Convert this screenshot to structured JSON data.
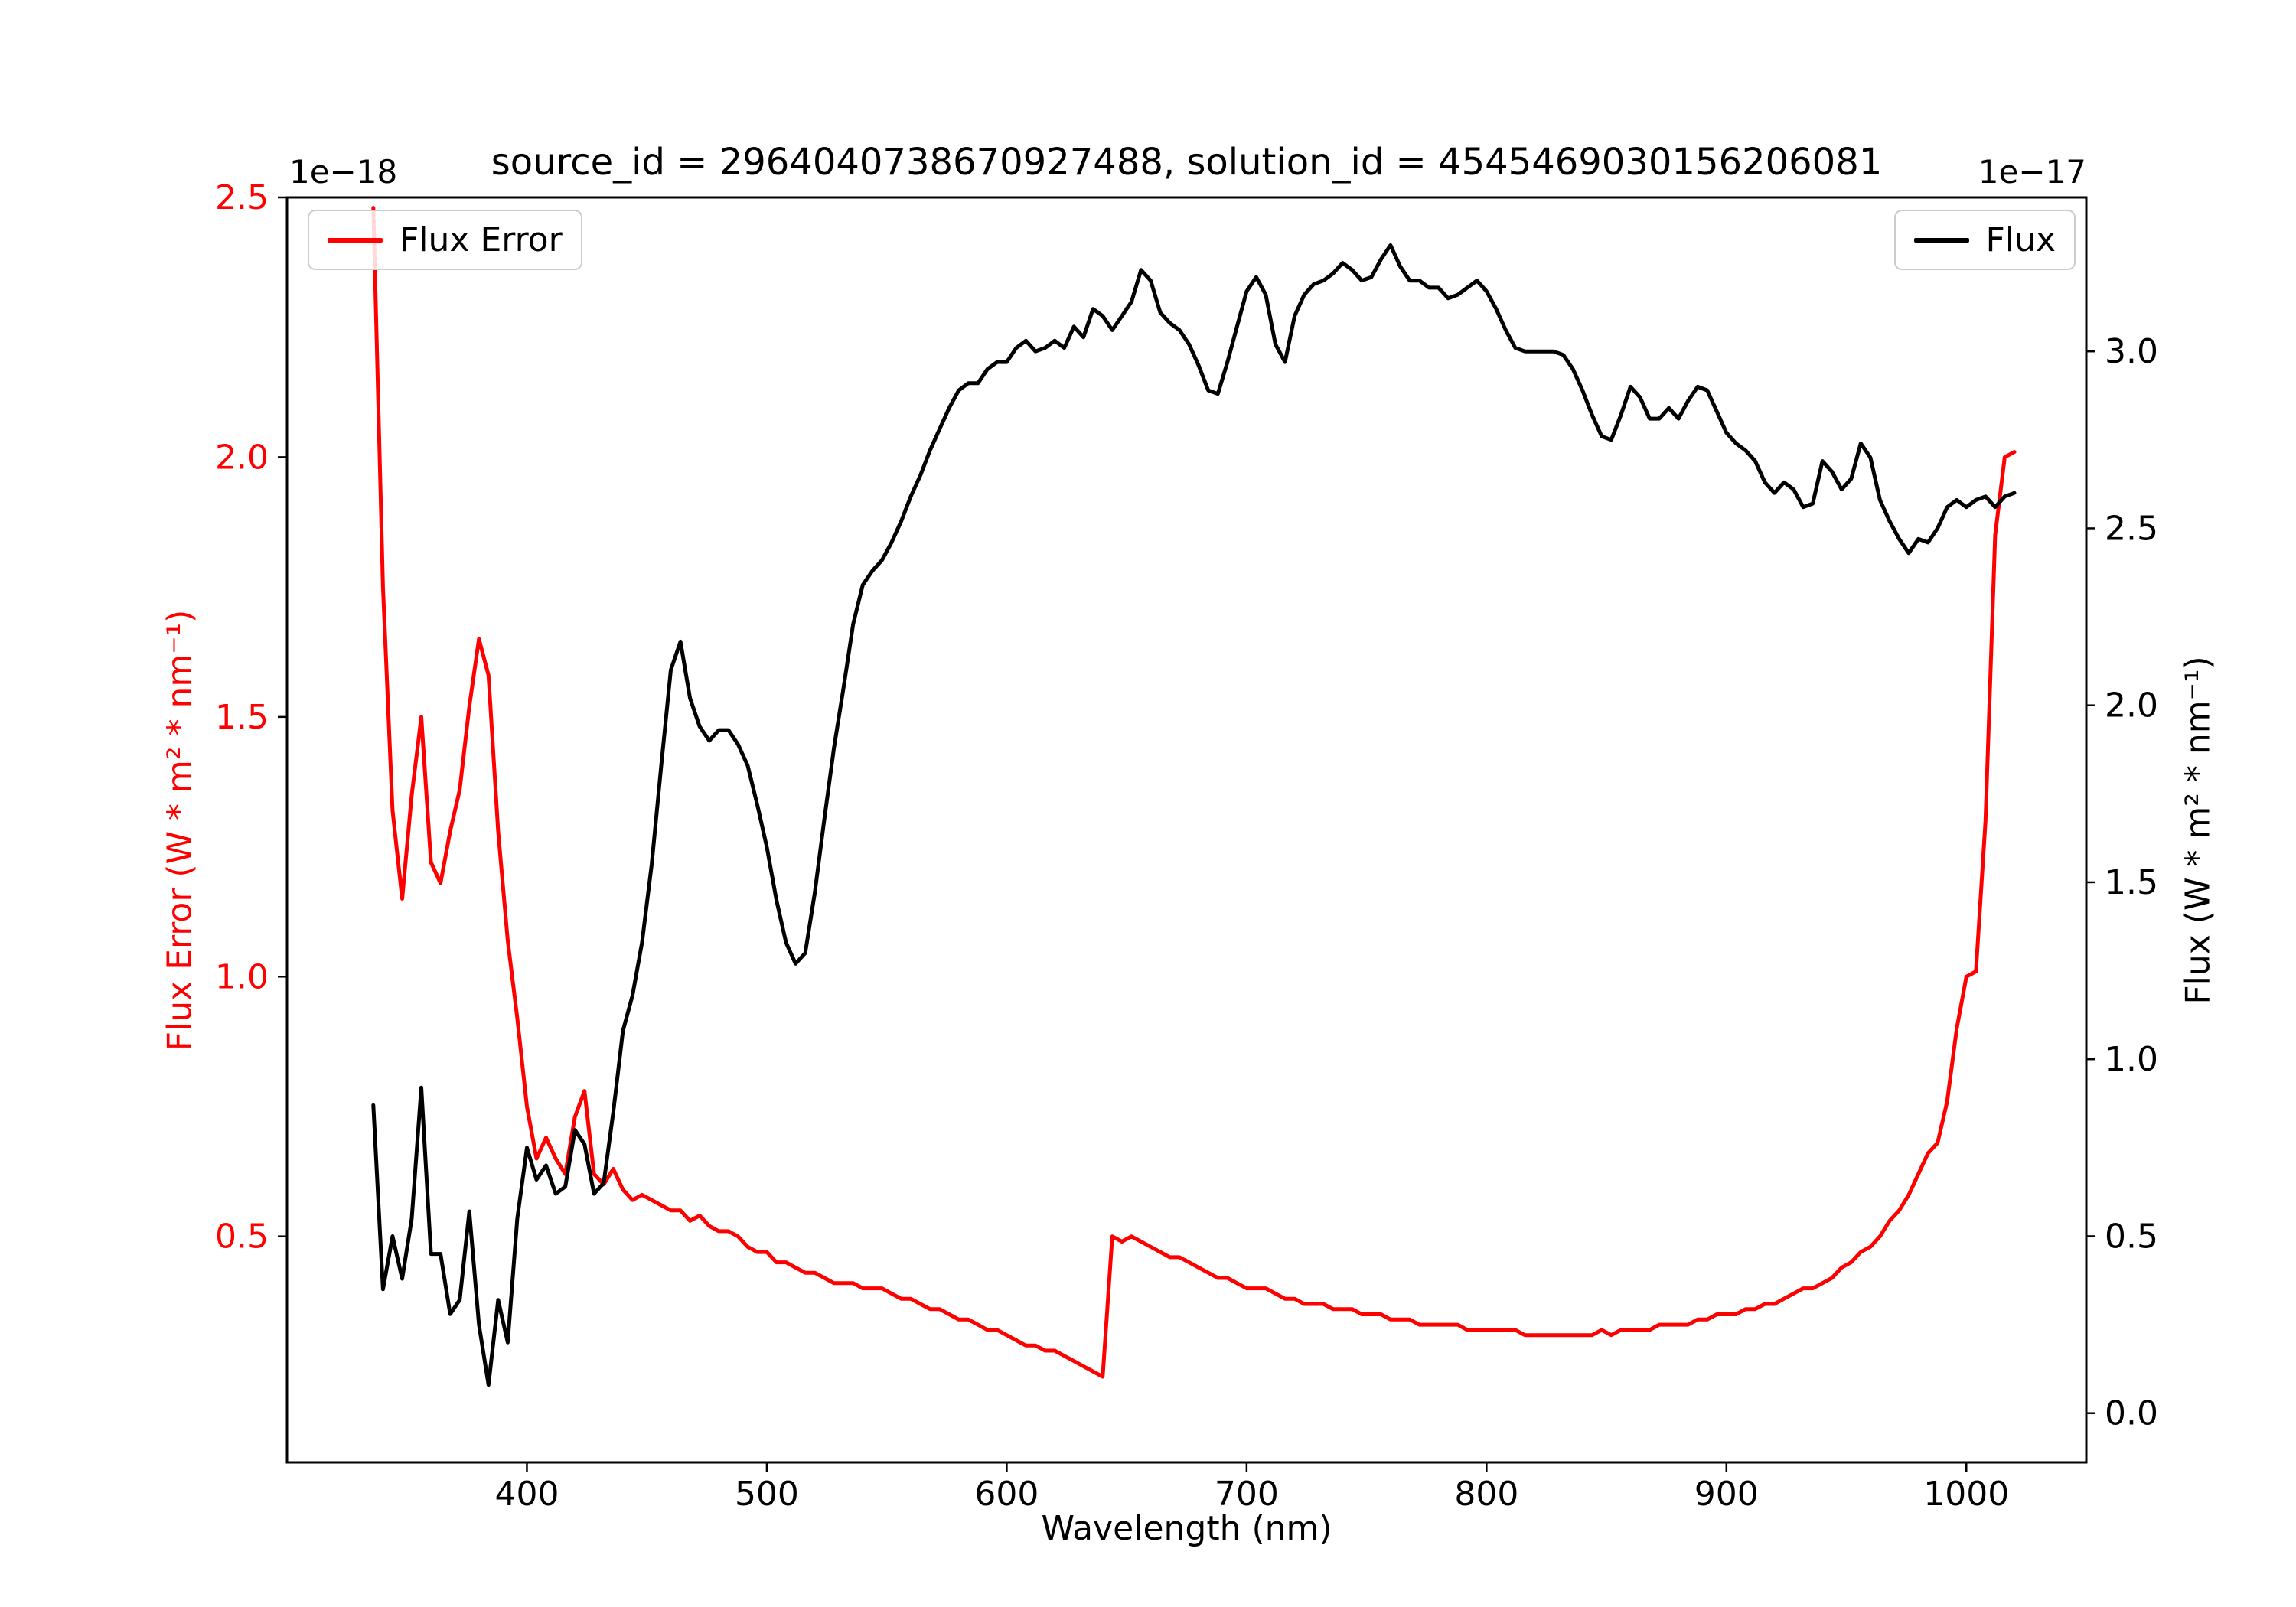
{
  "chart_data": {
    "type": "line",
    "title": "source_id = 2964040738670927488, solution_id = 4545469030156206081",
    "xlabel": "Wavelength (nm)",
    "ylabel_left": "Flux Error (W * m² * nm⁻¹)",
    "ylabel_right": "Flux (W * m² * nm⁻¹)",
    "offset_left": "1e−18",
    "offset_right": "1e−17",
    "xlim": [
      300,
      1050
    ],
    "ylim_left": [
      0.065,
      2.5
    ],
    "ylim_right": [
      -0.139,
      3.435
    ],
    "xticks": [
      400,
      500,
      600,
      700,
      800,
      900,
      1000
    ],
    "yticks_left": [
      0.5,
      1.0,
      1.5,
      2.0,
      2.5
    ],
    "yticks_right": [
      0.0,
      0.5,
      1.0,
      1.5,
      2.0,
      2.5,
      3.0
    ],
    "grid": false,
    "legend_positions": [
      "upper-left",
      "upper-right"
    ],
    "x": [
      336,
      340,
      344,
      348,
      352,
      356,
      360,
      364,
      368,
      372,
      376,
      380,
      384,
      388,
      392,
      396,
      400,
      404,
      408,
      412,
      416,
      420,
      424,
      428,
      432,
      436,
      440,
      444,
      448,
      452,
      456,
      460,
      464,
      468,
      472,
      476,
      480,
      484,
      488,
      492,
      496,
      500,
      504,
      508,
      512,
      516,
      520,
      524,
      528,
      532,
      536,
      540,
      544,
      548,
      552,
      556,
      560,
      564,
      568,
      572,
      576,
      580,
      584,
      588,
      592,
      596,
      600,
      604,
      608,
      612,
      616,
      620,
      624,
      628,
      632,
      636,
      640,
      644,
      648,
      652,
      656,
      660,
      664,
      668,
      672,
      676,
      680,
      684,
      688,
      692,
      696,
      700,
      704,
      708,
      712,
      716,
      720,
      724,
      728,
      732,
      736,
      740,
      744,
      748,
      752,
      756,
      760,
      764,
      768,
      772,
      776,
      780,
      784,
      788,
      792,
      796,
      800,
      804,
      808,
      812,
      816,
      820,
      824,
      828,
      832,
      836,
      840,
      844,
      848,
      852,
      856,
      860,
      864,
      868,
      872,
      876,
      880,
      884,
      888,
      892,
      896,
      900,
      904,
      908,
      912,
      916,
      920,
      924,
      928,
      932,
      936,
      940,
      944,
      948,
      952,
      956,
      960,
      964,
      968,
      972,
      976,
      980,
      984,
      988,
      992,
      996,
      1000,
      1004,
      1008,
      1012,
      1016,
      1020
    ],
    "series": [
      {
        "name": "Flux Error",
        "axis": "left",
        "units_scale": "1e-18",
        "color": "#ff0000",
        "values": [
          2.48,
          1.75,
          1.32,
          1.15,
          1.35,
          1.5,
          1.22,
          1.18,
          1.28,
          1.36,
          1.52,
          1.65,
          1.58,
          1.28,
          1.07,
          0.92,
          0.75,
          0.65,
          0.69,
          0.65,
          0.62,
          0.73,
          0.78,
          0.62,
          0.6,
          0.63,
          0.59,
          0.57,
          0.58,
          0.57,
          0.56,
          0.55,
          0.55,
          0.53,
          0.54,
          0.52,
          0.51,
          0.51,
          0.5,
          0.48,
          0.47,
          0.47,
          0.45,
          0.45,
          0.44,
          0.43,
          0.43,
          0.42,
          0.41,
          0.41,
          0.41,
          0.4,
          0.4,
          0.4,
          0.39,
          0.38,
          0.38,
          0.37,
          0.36,
          0.36,
          0.35,
          0.34,
          0.34,
          0.33,
          0.32,
          0.32,
          0.31,
          0.3,
          0.29,
          0.29,
          0.28,
          0.28,
          0.27,
          0.26,
          0.25,
          0.24,
          0.23,
          0.5,
          0.49,
          0.5,
          0.49,
          0.48,
          0.47,
          0.46,
          0.46,
          0.45,
          0.44,
          0.43,
          0.42,
          0.42,
          0.41,
          0.4,
          0.4,
          0.4,
          0.39,
          0.38,
          0.38,
          0.37,
          0.37,
          0.37,
          0.36,
          0.36,
          0.36,
          0.35,
          0.35,
          0.35,
          0.34,
          0.34,
          0.34,
          0.33,
          0.33,
          0.33,
          0.33,
          0.33,
          0.32,
          0.32,
          0.32,
          0.32,
          0.32,
          0.32,
          0.31,
          0.31,
          0.31,
          0.31,
          0.31,
          0.31,
          0.31,
          0.31,
          0.32,
          0.31,
          0.32,
          0.32,
          0.32,
          0.32,
          0.33,
          0.33,
          0.33,
          0.33,
          0.34,
          0.34,
          0.35,
          0.35,
          0.35,
          0.36,
          0.36,
          0.37,
          0.37,
          0.38,
          0.39,
          0.4,
          0.4,
          0.41,
          0.42,
          0.44,
          0.45,
          0.47,
          0.48,
          0.5,
          0.53,
          0.55,
          0.58,
          0.62,
          0.66,
          0.68,
          0.76,
          0.9,
          1.0,
          1.01,
          1.3,
          1.85,
          2.0,
          2.01
        ]
      },
      {
        "name": "Flux",
        "axis": "right",
        "units_scale": "1e-17",
        "color": "#000000",
        "values": [
          0.87,
          0.35,
          0.5,
          0.38,
          0.55,
          0.92,
          0.45,
          0.45,
          0.28,
          0.32,
          0.57,
          0.25,
          0.08,
          0.32,
          0.2,
          0.55,
          0.75,
          0.66,
          0.7,
          0.62,
          0.64,
          0.8,
          0.76,
          0.62,
          0.65,
          0.85,
          1.08,
          1.18,
          1.33,
          1.55,
          1.83,
          2.1,
          2.18,
          2.02,
          1.94,
          1.9,
          1.93,
          1.93,
          1.89,
          1.83,
          1.72,
          1.6,
          1.45,
          1.33,
          1.27,
          1.3,
          1.47,
          1.68,
          1.88,
          2.05,
          2.23,
          2.34,
          2.38,
          2.41,
          2.46,
          2.52,
          2.59,
          2.65,
          2.72,
          2.78,
          2.84,
          2.89,
          2.91,
          2.91,
          2.95,
          2.97,
          2.97,
          3.01,
          3.03,
          3.0,
          3.01,
          3.03,
          3.01,
          3.07,
          3.04,
          3.12,
          3.1,
          3.06,
          3.1,
          3.14,
          3.23,
          3.2,
          3.11,
          3.08,
          3.06,
          3.02,
          2.96,
          2.89,
          2.88,
          2.97,
          3.07,
          3.17,
          3.21,
          3.16,
          3.02,
          2.97,
          3.1,
          3.16,
          3.19,
          3.2,
          3.22,
          3.25,
          3.23,
          3.2,
          3.21,
          3.26,
          3.3,
          3.24,
          3.2,
          3.2,
          3.18,
          3.18,
          3.15,
          3.16,
          3.18,
          3.2,
          3.17,
          3.12,
          3.06,
          3.01,
          3.0,
          3.0,
          3.0,
          3.0,
          2.99,
          2.95,
          2.89,
          2.82,
          2.76,
          2.75,
          2.82,
          2.9,
          2.87,
          2.81,
          2.81,
          2.84,
          2.81,
          2.86,
          2.9,
          2.89,
          2.83,
          2.77,
          2.74,
          2.72,
          2.69,
          2.63,
          2.6,
          2.63,
          2.61,
          2.56,
          2.57,
          2.69,
          2.66,
          2.61,
          2.64,
          2.74,
          2.7,
          2.58,
          2.52,
          2.47,
          2.43,
          2.47,
          2.46,
          2.5,
          2.56,
          2.58,
          2.56,
          2.58,
          2.59,
          2.56,
          2.59,
          2.6
        ]
      }
    ]
  }
}
